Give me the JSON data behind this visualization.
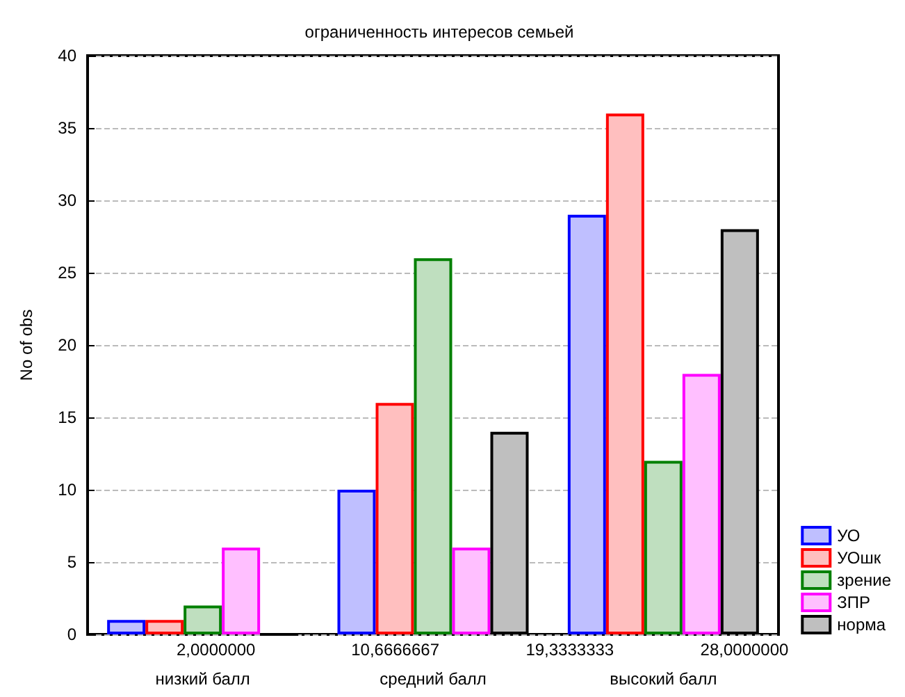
{
  "chart_data": {
    "type": "bar",
    "title": "ограниченность интересов семьей",
    "ylabel": "No of obs",
    "categories": [
      "низкий балл",
      "средний балл",
      "высокий балл"
    ],
    "series": [
      {
        "name": "УО",
        "color": "#0000ff",
        "values": [
          1,
          10,
          29
        ]
      },
      {
        "name": "УОшк",
        "color": "#ff0000",
        "values": [
          1,
          16,
          36
        ]
      },
      {
        "name": "зрение",
        "color": "#008000",
        "values": [
          2,
          26,
          12
        ]
      },
      {
        "name": "ЗПР",
        "color": "#ff00ff",
        "values": [
          6,
          6,
          18
        ]
      },
      {
        "name": "норма",
        "color": "#000000",
        "values": [
          0,
          14,
          28
        ]
      }
    ],
    "ylim": [
      0,
      40
    ],
    "yticks": [
      0,
      5,
      10,
      15,
      20,
      25,
      30,
      35,
      40
    ],
    "annotations": [
      "2,0000000",
      "10,6666667",
      "19,3333333",
      "28,0000000"
    ],
    "grid": "y",
    "legend": "bottom right"
  }
}
